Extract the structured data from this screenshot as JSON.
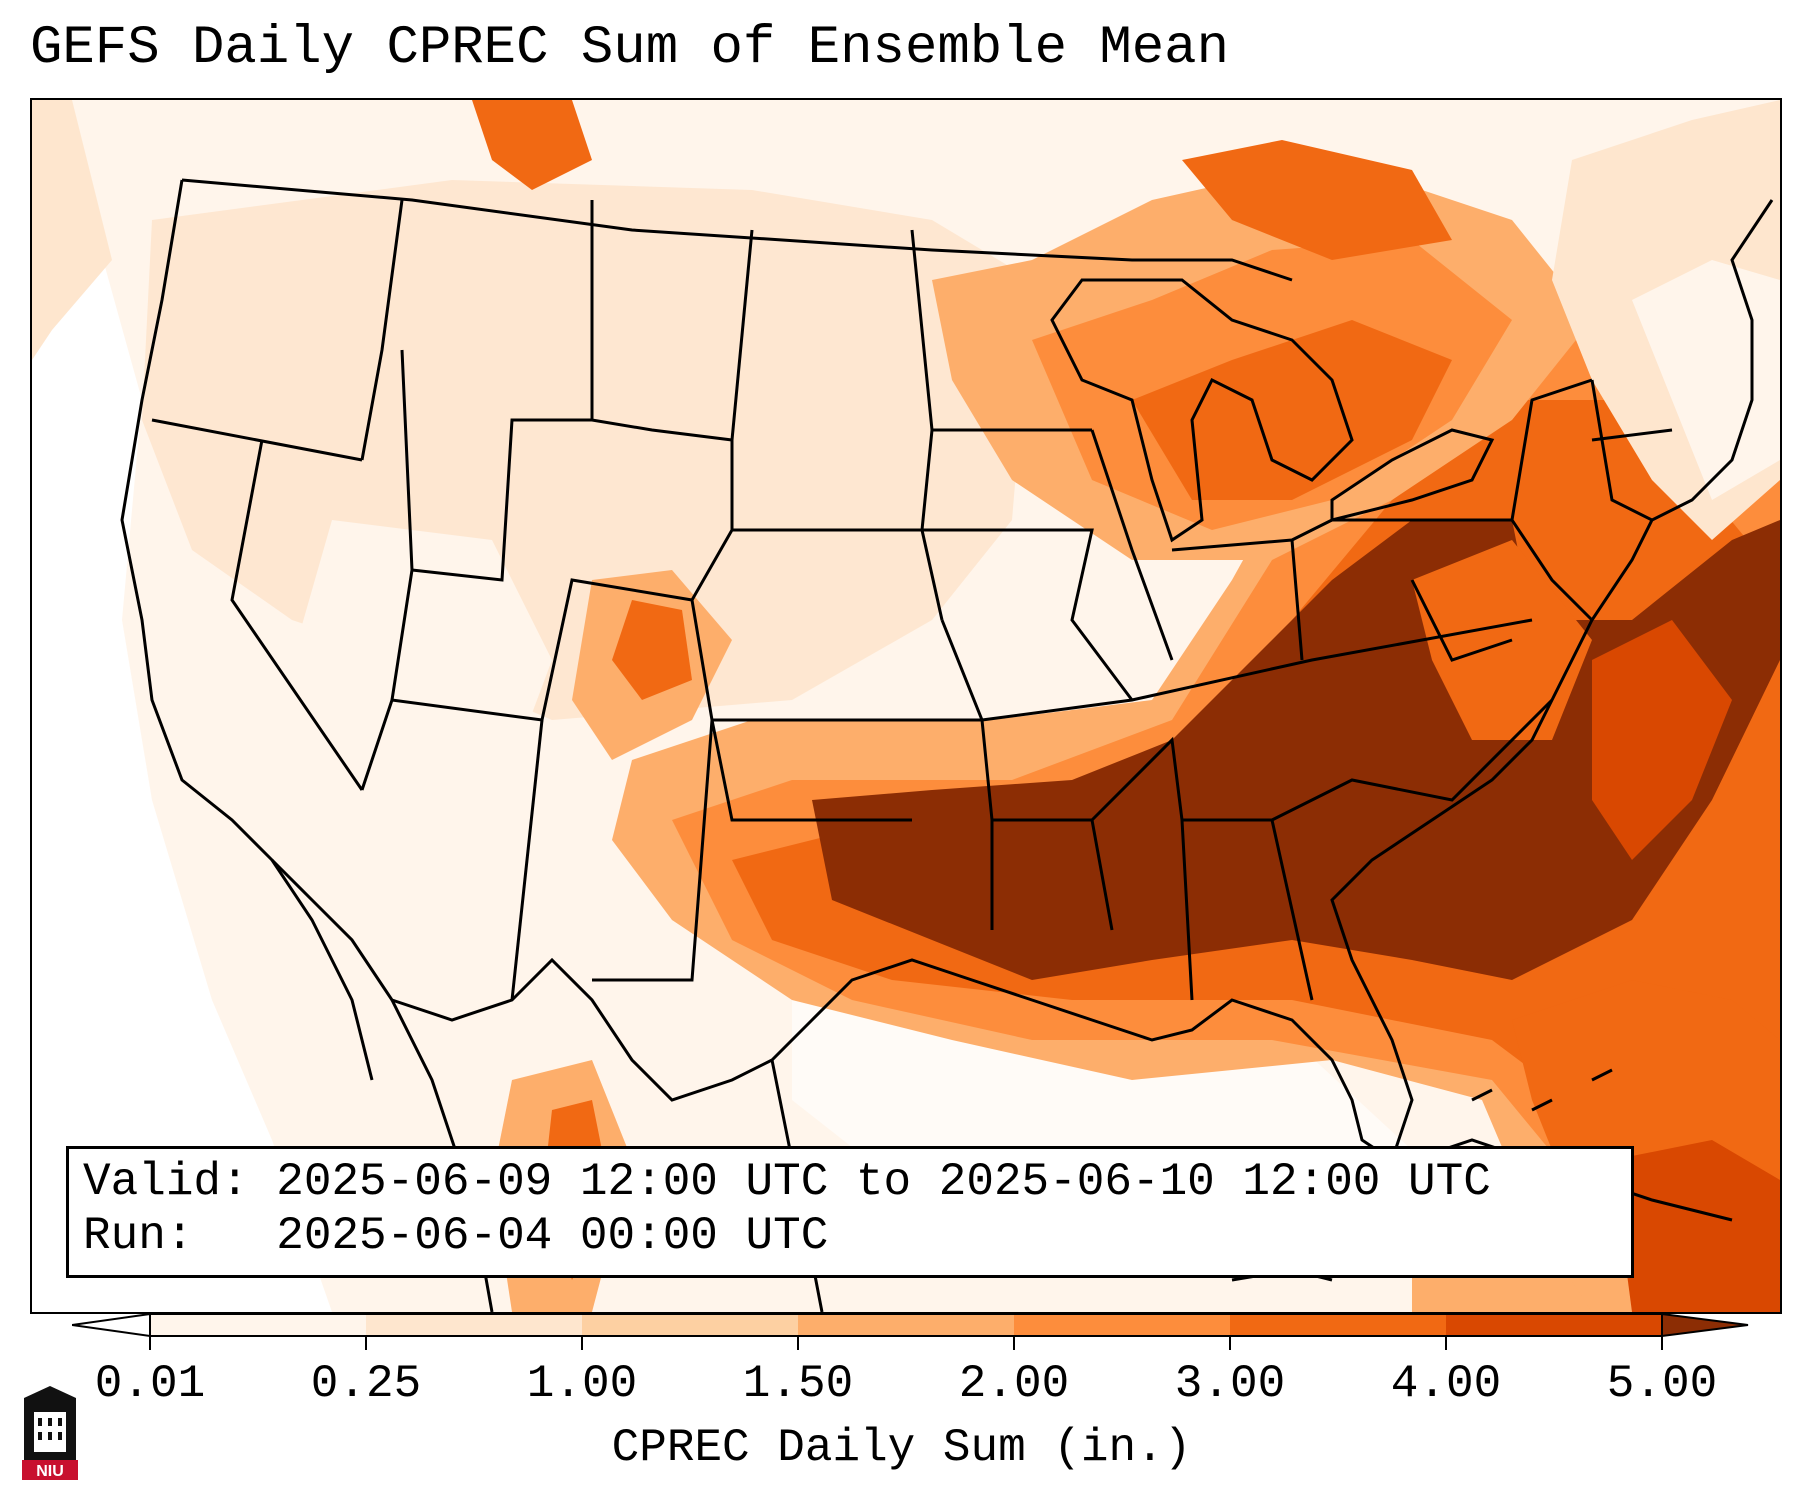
{
  "title": "GEFS Daily CPREC Sum of Ensemble Mean",
  "info": {
    "valid": "Valid: 2025-06-09 12:00 UTC to 2025-06-10 12:00 UTC",
    "run": "Run:   2025-06-04 00:00 UTC"
  },
  "colorbar": {
    "label": "CPREC Daily Sum (in.)",
    "ticks": [
      "0.01",
      "0.25",
      "1.00",
      "1.50",
      "2.00",
      "3.00",
      "4.00",
      "5.00"
    ],
    "colors": [
      "#fff5eb",
      "#fee6ce",
      "#fdd0a2",
      "#fdae6b",
      "#fd8d3c",
      "#f16913",
      "#d94801",
      "#8c2d04"
    ]
  },
  "logo": {
    "text": "NIU",
    "color": "#c8102e"
  },
  "colors": {
    "level_0": "#ffffff",
    "level_1": "#fff5eb",
    "level_2": "#fee6ce",
    "level_3": "#fdd0a2",
    "level_4": "#fdae6b",
    "level_5": "#fd8d3c",
    "level_6": "#f16913",
    "level_7": "#d94801",
    "level_8": "#8c2d04"
  }
}
